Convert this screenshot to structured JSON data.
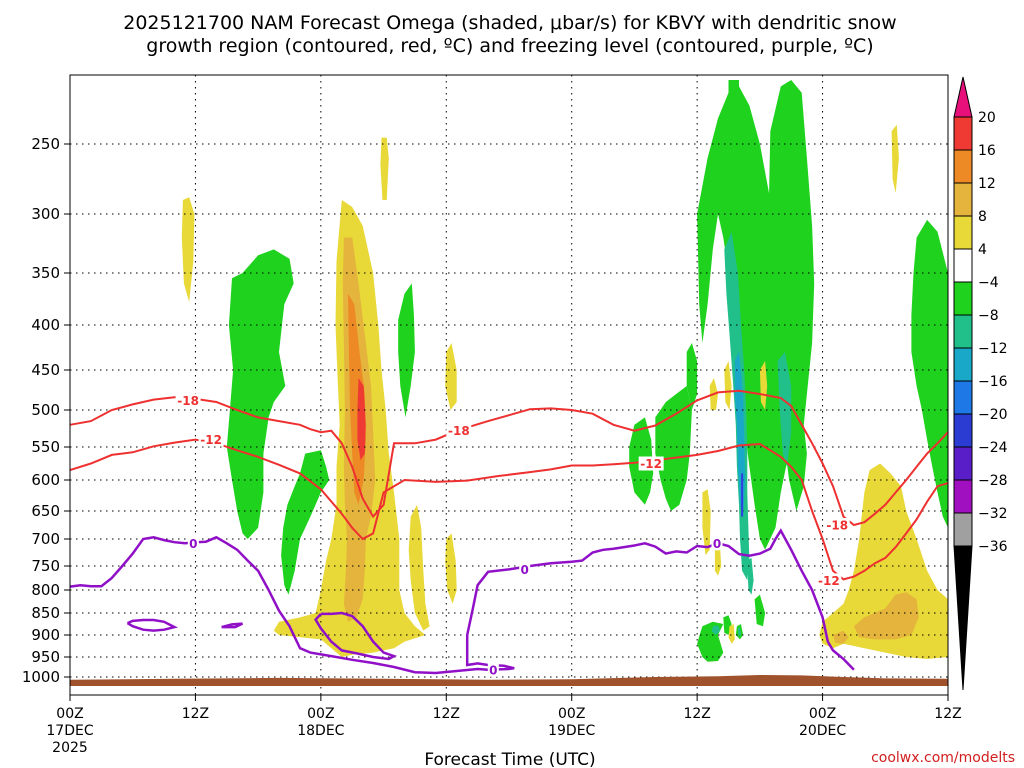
{
  "chart_data": {
    "type": "heatmap",
    "title_line1": "2025121700 NAM Forecast Omega (shaded, μbar/s) for KBVY with dendritic snow",
    "title_line2": "growth region (contoured, red, ºC) and freezing level (contoured, purple, ºC)",
    "xlabel": "Forecast Time (UTC)",
    "credit": "coolwx.com/modelts",
    "x_range_hours": [
      0,
      84
    ],
    "x_ticks": [
      {
        "hour": 0,
        "label": "00Z",
        "sub": "17DEC",
        "sub2": "2025"
      },
      {
        "hour": 12,
        "label": "12Z",
        "sub": "",
        "sub2": ""
      },
      {
        "hour": 24,
        "label": "00Z",
        "sub": "18DEC",
        "sub2": ""
      },
      {
        "hour": 36,
        "label": "12Z",
        "sub": "",
        "sub2": ""
      },
      {
        "hour": 48,
        "label": "00Z",
        "sub": "19DEC",
        "sub2": ""
      },
      {
        "hour": 60,
        "label": "12Z",
        "sub": "",
        "sub2": ""
      },
      {
        "hour": 72,
        "label": "00Z",
        "sub": "20DEC",
        "sub2": ""
      },
      {
        "hour": 84,
        "label": "12Z",
        "sub": "",
        "sub2": ""
      }
    ],
    "y_range_hpa": [
      200,
      1020
    ],
    "y_ticks": [
      {
        "p": 250,
        "label": "250"
      },
      {
        "p": 300,
        "label": "300"
      },
      {
        "p": 350,
        "label": "350"
      },
      {
        "p": 400,
        "label": "400"
      },
      {
        "p": 450,
        "label": "450"
      },
      {
        "p": 500,
        "label": "500"
      },
      {
        "p": 550,
        "label": "550"
      },
      {
        "p": 600,
        "label": "600"
      },
      {
        "p": 650,
        "label": "650"
      },
      {
        "p": 700,
        "label": "700"
      },
      {
        "p": 750,
        "label": "750"
      },
      {
        "p": 800,
        "label": "800"
      },
      {
        "p": 850,
        "label": "850"
      },
      {
        "p": 900,
        "label": "900"
      },
      {
        "p": 950,
        "label": "950"
      },
      {
        "p": 1000,
        "label": "1000"
      }
    ],
    "colorbar": [
      {
        "label": "20",
        "color": "#e8107a"
      },
      {
        "label": "16",
        "color": "#ef3a34"
      },
      {
        "label": "12",
        "color": "#ee8a25"
      },
      {
        "label": "8",
        "color": "#e4b43c"
      },
      {
        "label": "4",
        "color": "#e8d838"
      },
      {
        "label": "−4",
        "color": "#ffffff"
      },
      {
        "label": "−8",
        "color": "#1ed21e"
      },
      {
        "label": "−12",
        "color": "#21c08a"
      },
      {
        "label": "−16",
        "color": "#1aa8c8"
      },
      {
        "label": "−20",
        "color": "#1e78e6"
      },
      {
        "label": "−24",
        "color": "#2a3cd2"
      },
      {
        "label": "−28",
        "color": "#5a1ec8"
      },
      {
        "label": "−32",
        "color": "#a010c0"
      },
      {
        "label": "−36",
        "color": "#a0a0a0"
      }
    ],
    "colorbar_bottom_color": "#000000",
    "colors": {
      "ground": "#a0522d",
      "red_contour": "#ee3030",
      "purple_contour": "#9010c8",
      "yellow": "#e8d838",
      "gold": "#e4b43c",
      "orange": "#ee8a25",
      "red_fill": "#ef3a34",
      "green": "#1ed21e",
      "teal": "#21c08a",
      "cyan": "#1aa8c8"
    },
    "contour_labels": [
      {
        "text": "-18",
        "hour": 11.3,
        "p": 488,
        "color": "red"
      },
      {
        "text": "-12",
        "hour": 13.5,
        "p": 540,
        "color": "red"
      },
      {
        "text": "-18",
        "hour": 37.2,
        "p": 528,
        "color": "red"
      },
      {
        "text": "-12",
        "hour": 55.6,
        "p": 575,
        "color": "red"
      },
      {
        "text": "-18",
        "hour": 73.4,
        "p": 675,
        "color": "red"
      },
      {
        "text": "-12",
        "hour": 72.6,
        "p": 780,
        "color": "red"
      },
      {
        "text": "0",
        "hour": 11.8,
        "p": 708,
        "color": "purple"
      },
      {
        "text": "0",
        "hour": 43.5,
        "p": 757,
        "color": "purple"
      },
      {
        "text": "0",
        "hour": 61.9,
        "p": 708,
        "color": "purple"
      },
      {
        "text": "0",
        "hour": 40.5,
        "p": 982,
        "color": "purple"
      }
    ],
    "minus18_contour": [
      [
        0,
        520
      ],
      [
        2,
        515
      ],
      [
        4,
        500
      ],
      [
        6,
        493
      ],
      [
        8,
        487
      ],
      [
        10,
        484
      ],
      [
        11,
        484
      ],
      [
        14,
        490
      ],
      [
        16,
        500
      ],
      [
        18,
        510
      ],
      [
        20,
        515
      ],
      [
        22,
        520
      ],
      [
        23,
        526
      ],
      [
        24,
        530
      ],
      [
        25,
        528
      ],
      [
        26,
        545
      ],
      [
        27,
        580
      ],
      [
        28,
        630
      ],
      [
        29,
        660
      ],
      [
        30,
        640
      ],
      [
        31,
        545
      ],
      [
        33,
        545
      ],
      [
        35,
        540
      ],
      [
        37,
        528
      ],
      [
        40,
        515
      ],
      [
        42,
        507
      ],
      [
        44,
        499
      ],
      [
        46,
        498
      ],
      [
        48,
        500
      ],
      [
        50,
        505
      ],
      [
        52,
        520
      ],
      [
        54,
        528
      ],
      [
        56,
        521
      ],
      [
        58,
        505
      ],
      [
        60,
        488
      ],
      [
        62,
        478
      ],
      [
        64,
        476
      ],
      [
        66,
        480
      ],
      [
        68,
        485
      ],
      [
        69,
        495
      ],
      [
        70,
        520
      ],
      [
        71,
        545
      ],
      [
        72,
        575
      ],
      [
        73,
        610
      ],
      [
        74,
        660
      ],
      [
        75,
        675
      ],
      [
        76,
        670
      ],
      [
        77,
        655
      ],
      [
        78,
        640
      ],
      [
        79,
        620
      ],
      [
        80,
        600
      ],
      [
        81,
        580
      ],
      [
        82,
        560
      ],
      [
        83,
        545
      ],
      [
        84,
        530
      ]
    ],
    "minus12_contour": [
      [
        0,
        585
      ],
      [
        2,
        575
      ],
      [
        4,
        562
      ],
      [
        6,
        558
      ],
      [
        8,
        549
      ],
      [
        10,
        544
      ],
      [
        12,
        540
      ],
      [
        14,
        545
      ],
      [
        16,
        555
      ],
      [
        18,
        565
      ],
      [
        20,
        577
      ],
      [
        22,
        590
      ],
      [
        24,
        615
      ],
      [
        26,
        655
      ],
      [
        27,
        680
      ],
      [
        28,
        700
      ],
      [
        29,
        690
      ],
      [
        30,
        620
      ],
      [
        32,
        600
      ],
      [
        35,
        603
      ],
      [
        38,
        601
      ],
      [
        41,
        594
      ],
      [
        44,
        588
      ],
      [
        46,
        584
      ],
      [
        48,
        578
      ],
      [
        50,
        578
      ],
      [
        52,
        576
      ],
      [
        54,
        574
      ],
      [
        56,
        570
      ],
      [
        58,
        566
      ],
      [
        60,
        562
      ],
      [
        62,
        556
      ],
      [
        64,
        548
      ],
      [
        66,
        546
      ],
      [
        67,
        555
      ],
      [
        68,
        565
      ],
      [
        69,
        580
      ],
      [
        70,
        600
      ],
      [
        71,
        650
      ],
      [
        72,
        700
      ],
      [
        73,
        760
      ],
      [
        74,
        778
      ],
      [
        75,
        772
      ],
      [
        76,
        760
      ],
      [
        77,
        745
      ],
      [
        78,
        735
      ],
      [
        79,
        715
      ],
      [
        80,
        690
      ],
      [
        81,
        665
      ],
      [
        82,
        635
      ],
      [
        83,
        610
      ],
      [
        84,
        605
      ]
    ],
    "zero_contour_main": [
      [
        0,
        793
      ],
      [
        1,
        790
      ],
      [
        2,
        792
      ],
      [
        3,
        792
      ],
      [
        4,
        775
      ],
      [
        5,
        750
      ],
      [
        6,
        727
      ],
      [
        7,
        700
      ],
      [
        8,
        697
      ],
      [
        9,
        702
      ],
      [
        10,
        706
      ],
      [
        11,
        708
      ],
      [
        12,
        706
      ],
      [
        13,
        705
      ],
      [
        14,
        697
      ],
      [
        15,
        708
      ],
      [
        16,
        720
      ],
      [
        17,
        740
      ],
      [
        18,
        760
      ],
      [
        19,
        800
      ],
      [
        20,
        845
      ],
      [
        21,
        880
      ],
      [
        22,
        930
      ],
      [
        23,
        940
      ],
      [
        25,
        948
      ],
      [
        27,
        957
      ],
      [
        29,
        965
      ],
      [
        31,
        975
      ],
      [
        33,
        988
      ],
      [
        35,
        990
      ],
      [
        37,
        985
      ],
      [
        39,
        980
      ],
      [
        40,
        982
      ],
      [
        41,
        981
      ],
      [
        42,
        980
      ],
      [
        42.5,
        978
      ],
      [
        41.5,
        972
      ],
      [
        40,
        970
      ],
      [
        39,
        966
      ],
      [
        38,
        970
      ],
      [
        38,
        900
      ],
      [
        38.5,
        845
      ],
      [
        39,
        790
      ],
      [
        40,
        762
      ],
      [
        42,
        757
      ],
      [
        44,
        750
      ],
      [
        46,
        745
      ],
      [
        48,
        742
      ],
      [
        49,
        740
      ],
      [
        50,
        725
      ],
      [
        51,
        720
      ],
      [
        52,
        718
      ],
      [
        53,
        715
      ],
      [
        54,
        712
      ],
      [
        55,
        708
      ],
      [
        56,
        714
      ],
      [
        57,
        727
      ],
      [
        58,
        723
      ],
      [
        59,
        725
      ],
      [
        60,
        713
      ],
      [
        61,
        715
      ],
      [
        62,
        708
      ],
      [
        63,
        713
      ],
      [
        64,
        728
      ],
      [
        65,
        731
      ],
      [
        66,
        727
      ],
      [
        67,
        718
      ],
      [
        67.5,
        700
      ],
      [
        68,
        685
      ],
      [
        69,
        720
      ],
      [
        70,
        760
      ],
      [
        71,
        800
      ],
      [
        72,
        860
      ],
      [
        72.5,
        915
      ],
      [
        73,
        935
      ],
      [
        74,
        955
      ],
      [
        75,
        982
      ]
    ],
    "zero_contour_loop1": [
      [
        5.5,
        873
      ],
      [
        6,
        880
      ],
      [
        7,
        888
      ],
      [
        8,
        890
      ],
      [
        9,
        888
      ],
      [
        10,
        882
      ],
      [
        9,
        870
      ],
      [
        8,
        866
      ],
      [
        7,
        866
      ],
      [
        6,
        868
      ],
      [
        5.5,
        873
      ]
    ],
    "zero_contour_loop2": [
      [
        14.5,
        882
      ],
      [
        15.5,
        876
      ],
      [
        16.5,
        874
      ],
      [
        15.8,
        882
      ],
      [
        14.5,
        882
      ]
    ],
    "zero_contour_loop3": [
      [
        24,
        852
      ],
      [
        25,
        852
      ],
      [
        26,
        850
      ],
      [
        27,
        857
      ],
      [
        28,
        880
      ],
      [
        29,
        915
      ],
      [
        30,
        940
      ],
      [
        31,
        948
      ],
      [
        30.5,
        955
      ],
      [
        29,
        950
      ],
      [
        27.5,
        942
      ],
      [
        26,
        935
      ],
      [
        25,
        915
      ],
      [
        24,
        885
      ],
      [
        23.5,
        865
      ],
      [
        24,
        852
      ]
    ]
  }
}
